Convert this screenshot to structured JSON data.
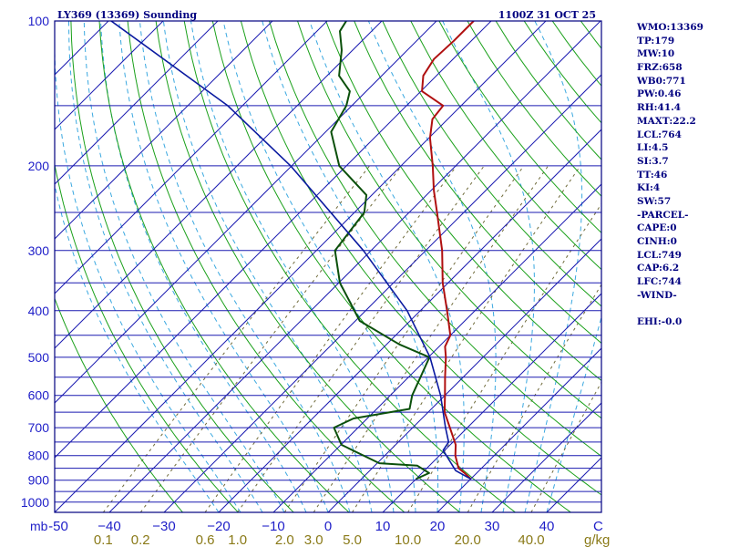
{
  "colors": {
    "frame": "#000080",
    "isobar": "#1a1ab0",
    "isotherm": "#1a1ab0",
    "dry_adiabat": "#1aa01a",
    "moist_adiabat": "#3aa8e0",
    "mixing_ratio": "#6f6a3a",
    "temperature": "#b01010",
    "dewpoint": "#0b500b",
    "parcel": "#0a1aa0",
    "tick_text": "#1e1ec8",
    "mixing_text": "#8a7a18"
  },
  "chart_data": {
    "type": "line",
    "diagram": "skew-T log-P",
    "title": "LY369 (13369) Sounding",
    "valid_time": "1100Z 31 OCT 25",
    "ylabel": "mb",
    "xlabel": "C",
    "mixing_ratio_unit": "g/kg",
    "pressure_range": [
      1050,
      100
    ],
    "temperature_range_at_base": [
      -50,
      50
    ],
    "pressure_ticks": [
      100,
      200,
      300,
      400,
      500,
      600,
      700,
      800,
      900,
      1000
    ],
    "isobars": [
      100,
      150,
      200,
      250,
      300,
      350,
      400,
      450,
      500,
      550,
      600,
      650,
      700,
      750,
      800,
      850,
      900,
      950,
      1000,
      1050
    ],
    "temperature_ticks": [
      -50,
      -40,
      -30,
      -20,
      -10,
      0,
      10,
      20,
      30,
      40
    ],
    "temperature_tick_labels": [
      "-50",
      "−40",
      "−30",
      "−20",
      "−10",
      "0",
      "10",
      "20",
      "30",
      "40"
    ],
    "mixing_ratio_lines": [
      0.1,
      0.2,
      0.6,
      1.0,
      2.0,
      3.0,
      5.0,
      10.0,
      20.0,
      40.0
    ],
    "mixing_ratio_labels": [
      {
        "w": 0.1,
        "label": "0.1"
      },
      {
        "w": 0.2,
        "label": "0.2"
      },
      {
        "w": 0.6,
        "label": "0.6"
      },
      {
        "w": 1.0,
        "label": "1.0"
      },
      {
        "w": 2.0,
        "label": "2.0"
      },
      {
        "w": 3.0,
        "label": "3.0"
      },
      {
        "w": 5.0,
        "label": "5.0"
      },
      {
        "w": 10.0,
        "label": "10.0"
      },
      {
        "w": 20.0,
        "label": "20.0"
      },
      {
        "w": 40.0,
        "label": "40.0"
      }
    ],
    "series": [
      {
        "name": "temperature",
        "points": [
          {
            "p": 895,
            "t": 20.0
          },
          {
            "p": 870,
            "t": 17.8
          },
          {
            "p": 850,
            "t": 15.8
          },
          {
            "p": 800,
            "t": 12.9
          },
          {
            "p": 760,
            "t": 11.0
          },
          {
            "p": 700,
            "t": 6.8
          },
          {
            "p": 650,
            "t": 3.0
          },
          {
            "p": 600,
            "t": 0.0
          },
          {
            "p": 550,
            "t": -3.3
          },
          {
            "p": 500,
            "t": -6.8
          },
          {
            "p": 475,
            "t": -8.9
          },
          {
            "p": 450,
            "t": -10.0
          },
          {
            "p": 400,
            "t": -15.1
          },
          {
            "p": 350,
            "t": -21.0
          },
          {
            "p": 300,
            "t": -27.0
          },
          {
            "p": 250,
            "t": -34.9
          },
          {
            "p": 225,
            "t": -39.5
          },
          {
            "p": 200,
            "t": -44.2
          },
          {
            "p": 175,
            "t": -49.8
          },
          {
            "p": 160,
            "t": -52.8
          },
          {
            "p": 150,
            "t": -53.3
          },
          {
            "p": 140,
            "t": -59.8
          },
          {
            "p": 130,
            "t": -62.4
          },
          {
            "p": 120,
            "t": -63.5
          },
          {
            "p": 110,
            "t": -63.2
          },
          {
            "p": 100,
            "t": -63.2
          }
        ]
      },
      {
        "name": "dewpoint",
        "points": [
          {
            "p": 895,
            "t": 10.0
          },
          {
            "p": 870,
            "t": 11.3
          },
          {
            "p": 840,
            "t": 7.8
          },
          {
            "p": 830,
            "t": 0.4
          },
          {
            "p": 760,
            "t": -9.9
          },
          {
            "p": 700,
            "t": -14.4
          },
          {
            "p": 670,
            "t": -12.5
          },
          {
            "p": 640,
            "t": -4.0
          },
          {
            "p": 600,
            "t": -6.0
          },
          {
            "p": 550,
            "t": -7.8
          },
          {
            "p": 500,
            "t": -9.8
          },
          {
            "p": 470,
            "t": -17.7
          },
          {
            "p": 420,
            "t": -29.2
          },
          {
            "p": 350,
            "t": -39.8
          },
          {
            "p": 300,
            "t": -46.6
          },
          {
            "p": 250,
            "t": -48.2
          },
          {
            "p": 230,
            "t": -51.0
          },
          {
            "p": 200,
            "t": -61.3
          },
          {
            "p": 170,
            "t": -69.0
          },
          {
            "p": 150,
            "t": -71.0
          },
          {
            "p": 140,
            "t": -73.0
          },
          {
            "p": 130,
            "t": -77.8
          },
          {
            "p": 115,
            "t": -82.0
          },
          {
            "p": 105,
            "t": -85.8
          },
          {
            "p": 100,
            "t": -86.5
          }
        ]
      },
      {
        "name": "parcel",
        "points": [
          {
            "p": 895,
            "t": 20.0
          },
          {
            "p": 860,
            "t": 15.7
          },
          {
            "p": 780,
            "t": 9.7
          },
          {
            "p": 750,
            "t": 9.2
          },
          {
            "p": 700,
            "t": 6.0
          },
          {
            "p": 600,
            "t": -0.8
          },
          {
            "p": 500,
            "t": -9.7
          },
          {
            "p": 400,
            "t": -22.4
          },
          {
            "p": 300,
            "t": -41.4
          },
          {
            "p": 200,
            "t": -70.2
          },
          {
            "p": 150,
            "t": -92.7
          },
          {
            "p": 100,
            "t": -129.5
          }
        ]
      }
    ]
  },
  "indices": [
    "WMO:13369",
    "TP:179",
    "MW:10",
    "FRZ:658",
    "WB0:771",
    "PW:0.46",
    "RH:41.4",
    "MAXT:22.2",
    "LCL:764",
    "LI:4.5",
    "SI:3.7",
    "TT:46",
    "KI:4",
    "SW:57",
    "-PARCEL-",
    "CAPE:0",
    "CINH:0",
    "LCL:749",
    "CAP:6.2",
    "LFC:744",
    "-WIND-",
    "",
    "EHI:-0.0"
  ]
}
